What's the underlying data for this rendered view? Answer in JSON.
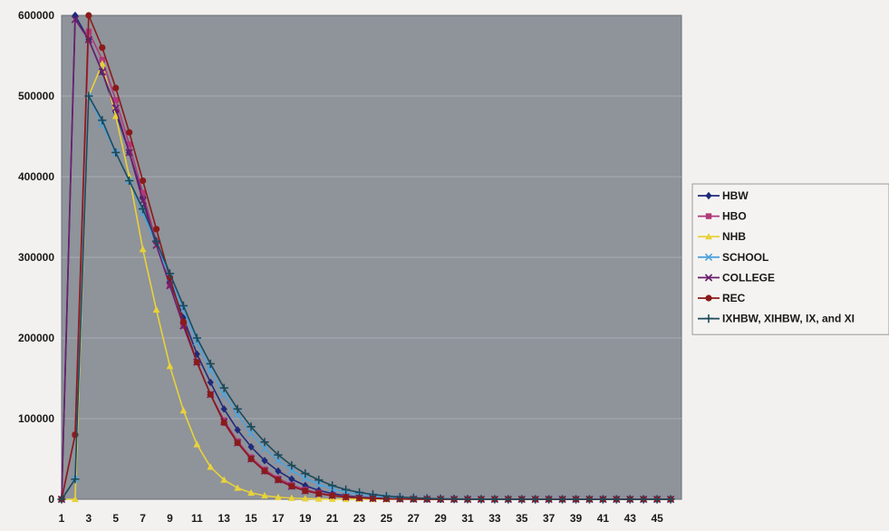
{
  "chart_data": {
    "type": "line",
    "title": "",
    "xlabel": "",
    "ylabel": "",
    "x": [
      1,
      2,
      3,
      4,
      5,
      6,
      7,
      8,
      9,
      10,
      11,
      12,
      13,
      14,
      15,
      16,
      17,
      18,
      19,
      20,
      21,
      22,
      23,
      24,
      25,
      26,
      27,
      28,
      29,
      30,
      31,
      32,
      33,
      34,
      35,
      36,
      37,
      38,
      39,
      40,
      41,
      42,
      43,
      44,
      45,
      46
    ],
    "x_tick_labels": [
      "1",
      "3",
      "5",
      "7",
      "9",
      "11",
      "13",
      "15",
      "17",
      "19",
      "21",
      "23",
      "25",
      "27",
      "29",
      "31",
      "33",
      "35",
      "37",
      "39",
      "41",
      "43",
      "45"
    ],
    "y_ticks": [
      0,
      100000,
      200000,
      300000,
      400000,
      500000,
      600000
    ],
    "y_tick_labels": [
      "0",
      "100000",
      "200000",
      "300000",
      "400000",
      "500000",
      "600000"
    ],
    "ylim": [
      0,
      600000
    ],
    "grid": "horizontal",
    "plot_background": "#8f939a",
    "legend_position": "right",
    "series": [
      {
        "name": "HBW",
        "color": "#1f2a7a",
        "marker": "diamond",
        "values": [
          0,
          600000,
          570000,
          530000,
          480000,
          430000,
          375000,
          320000,
          270000,
          225000,
          180000,
          145000,
          112000,
          86000,
          65000,
          48000,
          35000,
          25000,
          17000,
          11000,
          7000,
          4500,
          2800,
          1700,
          1000,
          600,
          350,
          200,
          100,
          50,
          0,
          0,
          0,
          0,
          0,
          0,
          0,
          0,
          0,
          0,
          0,
          0,
          0,
          0,
          0,
          0
        ]
      },
      {
        "name": "HBO",
        "color": "#b0397a",
        "marker": "square",
        "values": [
          0,
          80000,
          580000,
          545000,
          495000,
          440000,
          380000,
          320000,
          265000,
          215000,
          170000,
          130000,
          98000,
          72000,
          52000,
          37000,
          26000,
          18000,
          12000,
          8000,
          5000,
          3200,
          2000,
          1200,
          700,
          400,
          250,
          150,
          80,
          40,
          0,
          0,
          0,
          0,
          0,
          0,
          0,
          0,
          0,
          0,
          0,
          0,
          0,
          0,
          0,
          0
        ]
      },
      {
        "name": "NHB",
        "color": "#e8d23a",
        "marker": "triangle",
        "values": [
          0,
          0,
          500000,
          540000,
          475000,
          400000,
          310000,
          235000,
          165000,
          110000,
          68000,
          40000,
          24000,
          14000,
          8000,
          4500,
          2500,
          1400,
          800,
          450,
          250,
          140,
          80,
          40,
          20,
          10,
          0,
          0,
          0,
          0,
          0,
          0,
          0,
          0,
          0,
          0,
          0,
          0,
          0,
          0,
          0,
          0,
          0,
          0,
          0,
          0
        ]
      },
      {
        "name": "SCHOOL",
        "color": "#4fa3dc",
        "marker": "x",
        "values": [
          0,
          25000,
          500000,
          465000,
          430000,
          395000,
          355000,
          315000,
          275000,
          235000,
          195000,
          160000,
          130000,
          105000,
          82000,
          63000,
          48000,
          36000,
          26000,
          19000,
          13000,
          9000,
          6000,
          4000,
          2500,
          1500,
          900,
          500,
          300,
          150,
          80,
          0,
          0,
          0,
          0,
          0,
          0,
          0,
          0,
          0,
          0,
          0,
          0,
          0,
          0,
          0
        ]
      },
      {
        "name": "COLLEGE",
        "color": "#6a1f6a",
        "marker": "x",
        "values": [
          0,
          595000,
          570000,
          530000,
          485000,
          430000,
          370000,
          315000,
          265000,
          215000,
          170000,
          130000,
          96000,
          70000,
          50000,
          35000,
          24000,
          16000,
          10500,
          7000,
          4500,
          2800,
          1700,
          1000,
          600,
          350,
          200,
          100,
          50,
          0,
          0,
          0,
          0,
          0,
          0,
          0,
          0,
          0,
          0,
          0,
          0,
          0,
          0,
          0,
          0,
          0
        ]
      },
      {
        "name": "REC",
        "color": "#8b1a1a",
        "marker": "circle",
        "values": [
          0,
          80000,
          600000,
          560000,
          510000,
          455000,
          395000,
          335000,
          275000,
          220000,
          170000,
          130000,
          95000,
          70000,
          50000,
          35000,
          24000,
          16000,
          10500,
          7000,
          4500,
          2800,
          1700,
          1000,
          600,
          350,
          200,
          100,
          50,
          0,
          0,
          0,
          0,
          0,
          0,
          0,
          0,
          0,
          0,
          0,
          0,
          0,
          0,
          0,
          0,
          0
        ]
      },
      {
        "name": "IXHBW, XIHBW, IX, and XI",
        "color": "#1d4a5a",
        "marker": "plus",
        "values": [
          0,
          25000,
          500000,
          470000,
          430000,
          395000,
          360000,
          320000,
          280000,
          240000,
          200000,
          168000,
          138000,
          112000,
          90000,
          71000,
          55000,
          42000,
          32000,
          24000,
          17000,
          12000,
          8500,
          6000,
          4000,
          2700,
          1800,
          1100,
          700,
          400,
          250,
          150,
          80,
          40,
          0,
          0,
          0,
          0,
          0,
          0,
          0,
          0,
          0,
          0,
          0,
          0
        ]
      }
    ]
  }
}
